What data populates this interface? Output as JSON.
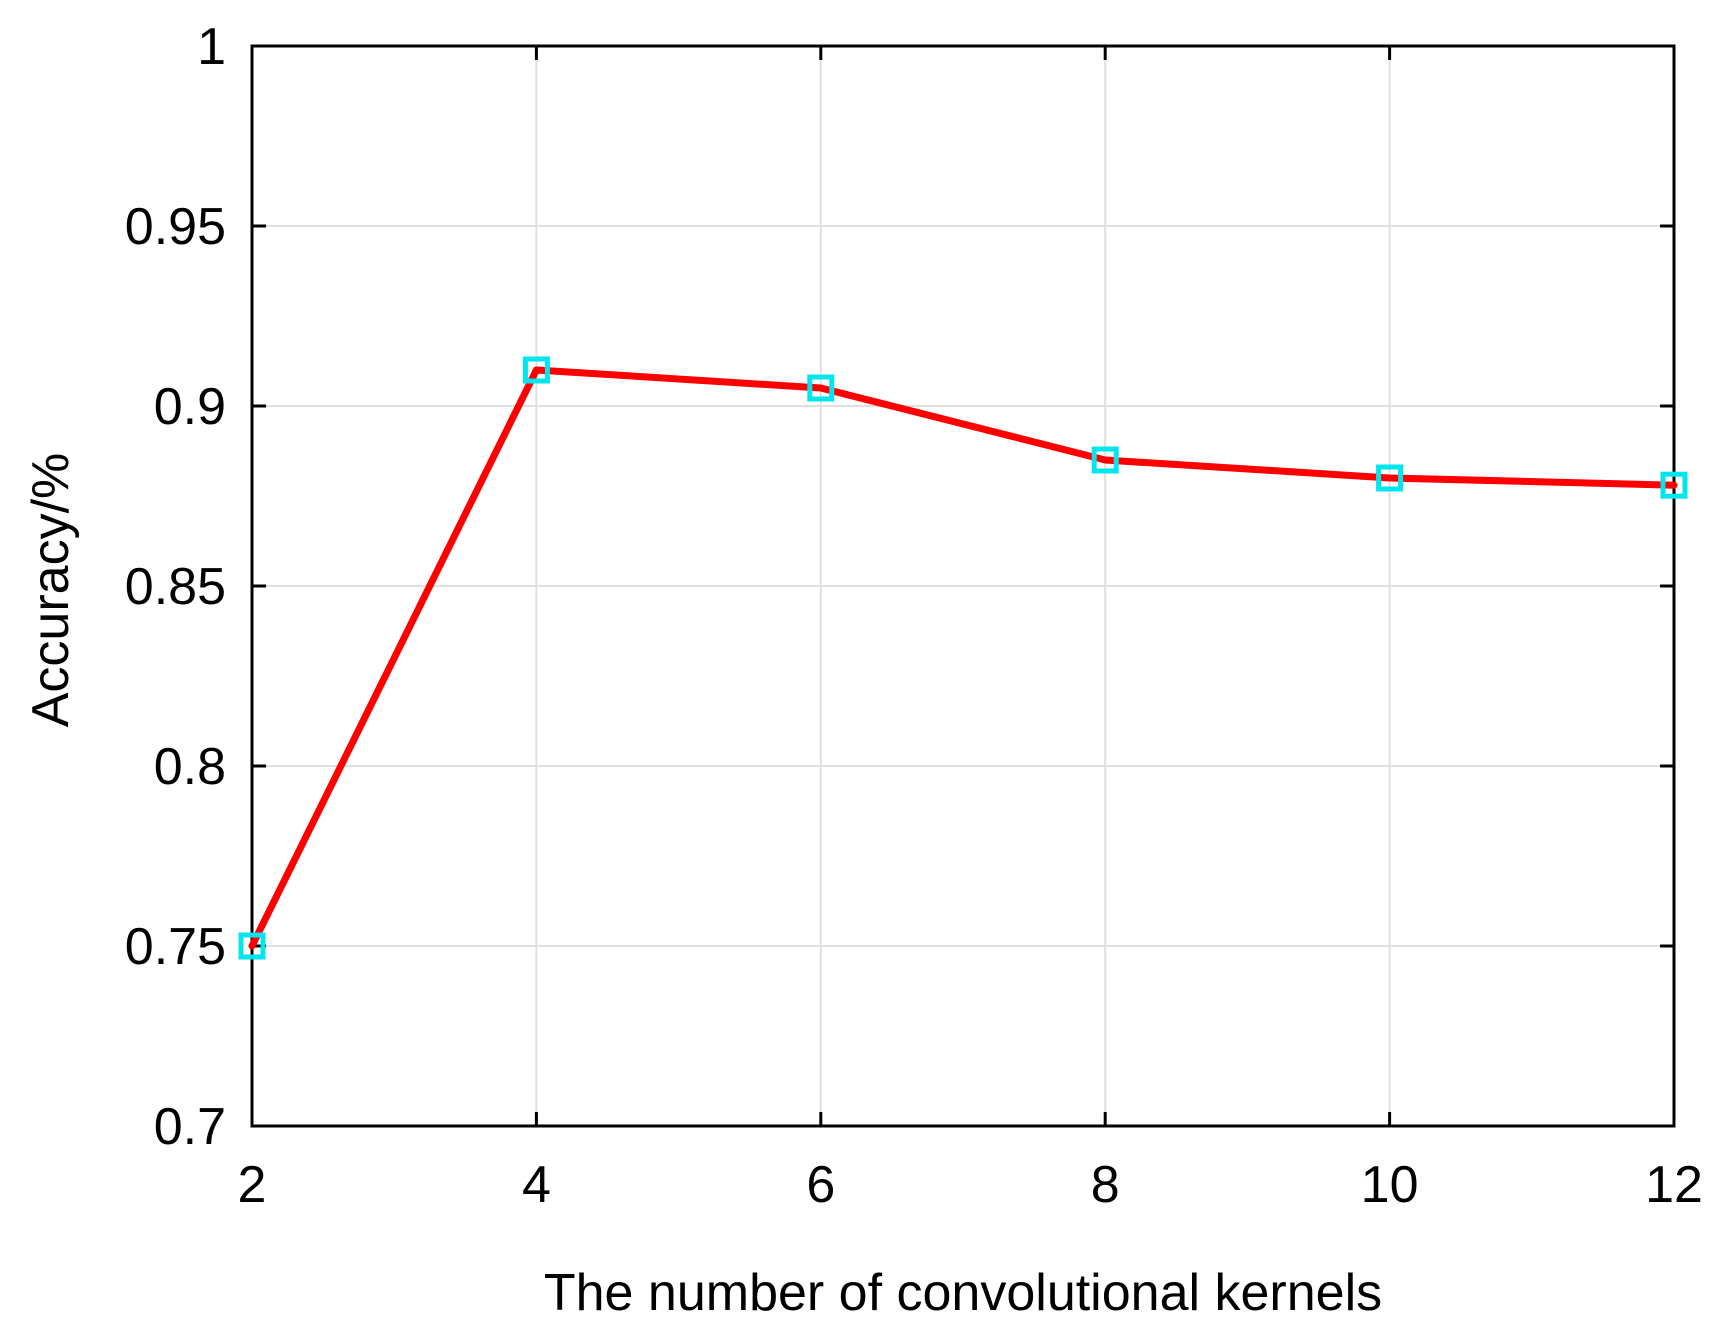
{
  "chart_data": {
    "type": "line",
    "title": "",
    "xlabel": "The number of convolutional kernels",
    "ylabel": "Accuracy/%",
    "x": [
      2,
      4,
      6,
      8,
      10,
      12
    ],
    "series": [
      {
        "name": "Accuracy",
        "values": [
          0.75,
          0.91,
          0.905,
          0.885,
          0.88,
          0.878
        ],
        "line_color": "#ff0000",
        "marker": "square",
        "marker_color": "#00e5ee"
      }
    ],
    "xlim": [
      2,
      12
    ],
    "ylim": [
      0.7,
      1.0
    ],
    "xticks": [
      2,
      4,
      6,
      8,
      10,
      12
    ],
    "xtick_labels": [
      "2",
      "4",
      "6",
      "8",
      "10",
      "12"
    ],
    "yticks": [
      0.7,
      0.75,
      0.8,
      0.85,
      0.9,
      0.95,
      1.0
    ],
    "ytick_labels": [
      "0.7",
      "0.75",
      "0.8",
      "0.85",
      "0.9",
      "0.95",
      "1"
    ],
    "grid": true,
    "legend": "none"
  },
  "colors": {
    "background": "#ffffff",
    "axes": "#000000",
    "grid": "#e0e0e0",
    "line": "#ff0000",
    "marker": "#00e5ee"
  }
}
